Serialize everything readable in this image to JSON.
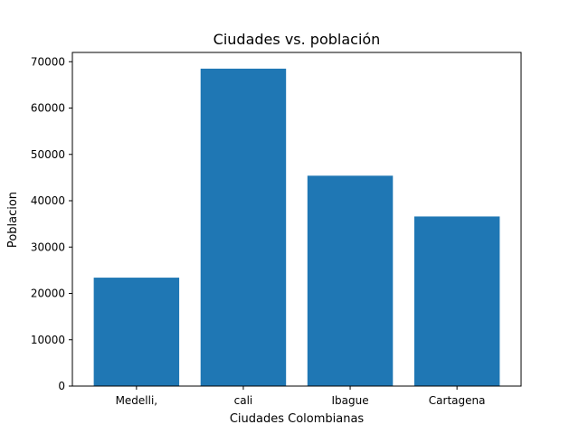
{
  "chart_data": {
    "type": "bar",
    "title": "Ciudades vs. población",
    "xlabel": "Ciudades Colombianas",
    "ylabel": "Poblacion",
    "categories": [
      "Medelli,",
      "cali",
      "Ibague",
      "Cartagena"
    ],
    "values": [
      23400,
      68500,
      45400,
      36600
    ],
    "ylim": [
      0,
      72000
    ],
    "yticks": [
      0,
      10000,
      20000,
      30000,
      40000,
      50000,
      60000,
      70000
    ],
    "grid": false,
    "bar_color": "#1f77b4"
  }
}
